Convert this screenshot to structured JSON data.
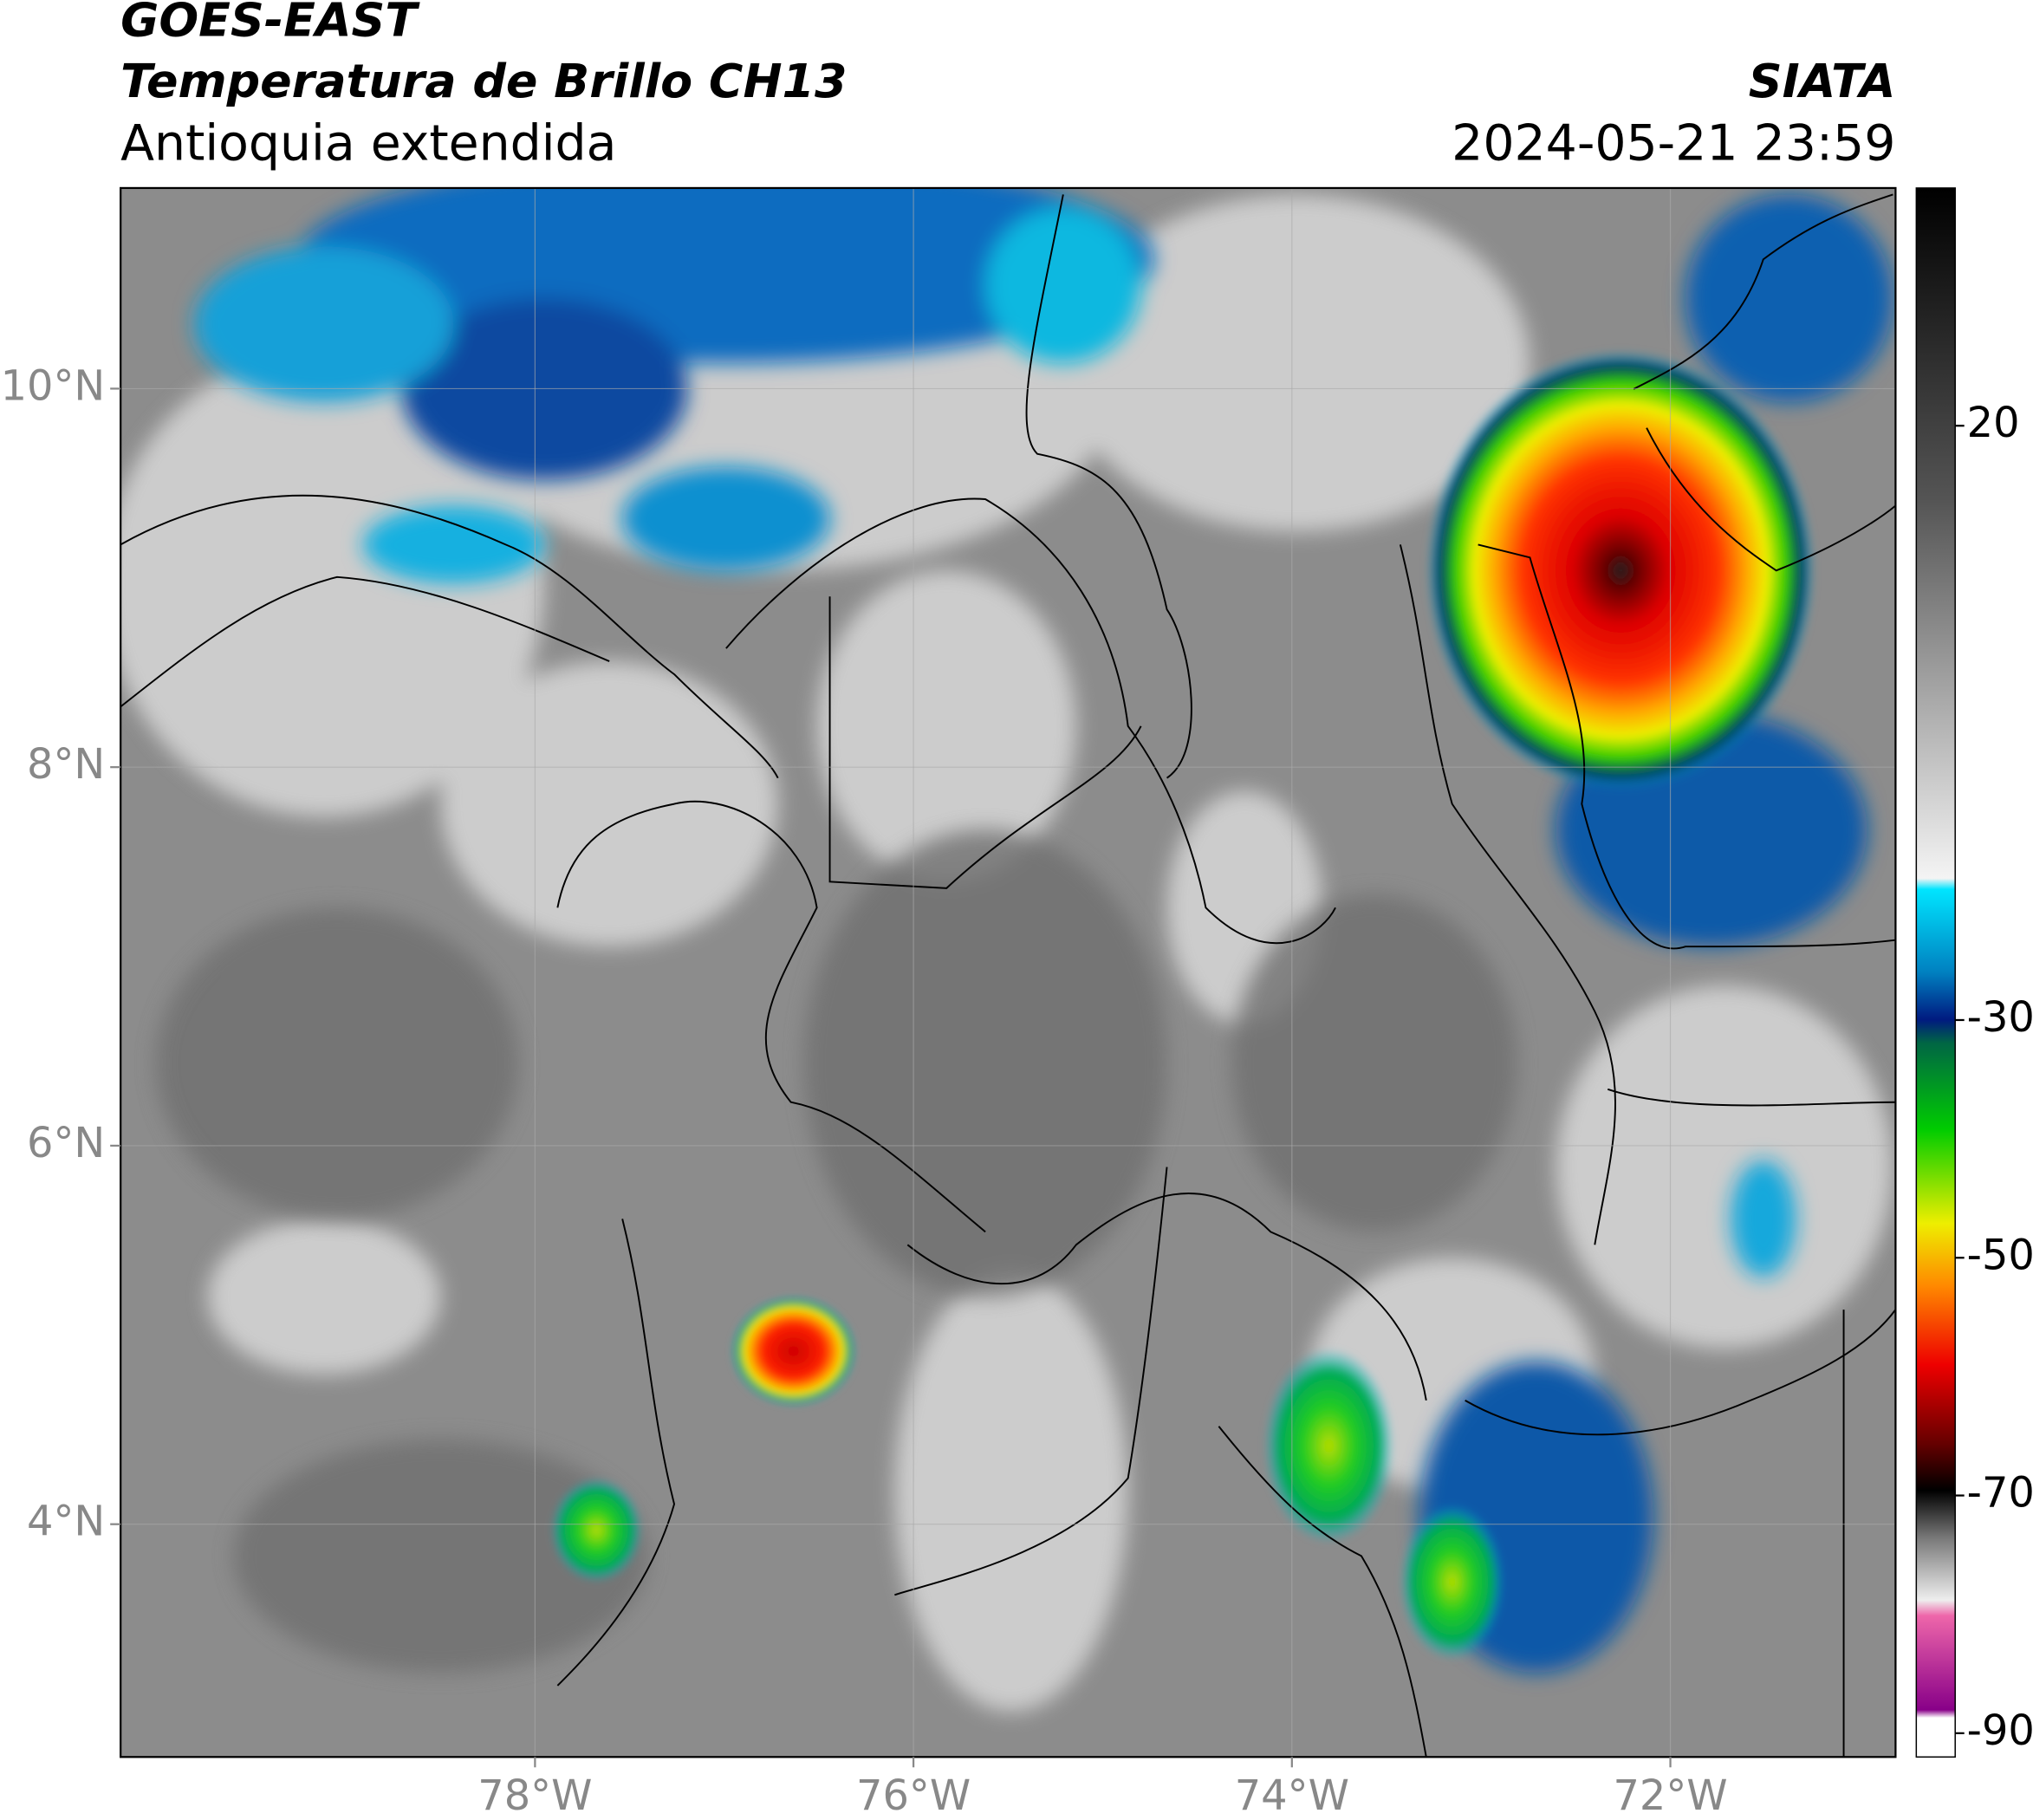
{
  "header": {
    "satellite": "GOES-EAST",
    "product": "Temperatura de Brillo CH13",
    "region": "Antioquia extendida",
    "source": "SIATA",
    "datetime": "2024-05-21 23:59"
  },
  "map": {
    "xlim": [
      -80.19,
      -70.81
    ],
    "ylim": [
      2.77,
      11.06
    ],
    "xticks": [
      {
        "value": -78,
        "label": "78°W"
      },
      {
        "value": -76,
        "label": "76°W"
      },
      {
        "value": -74,
        "label": "74°W"
      },
      {
        "value": -72,
        "label": "72°W"
      }
    ],
    "yticks": [
      {
        "value": 4,
        "label": "4°N"
      },
      {
        "value": 6,
        "label": "6°N"
      },
      {
        "value": 8,
        "label": "8°N"
      },
      {
        "value": 10,
        "label": "10°N"
      }
    ],
    "grid": true
  },
  "colorbar": {
    "clim": [
      -92,
      40
    ],
    "ticks": [
      20,
      -30,
      -50,
      -70,
      -90
    ]
  }
}
